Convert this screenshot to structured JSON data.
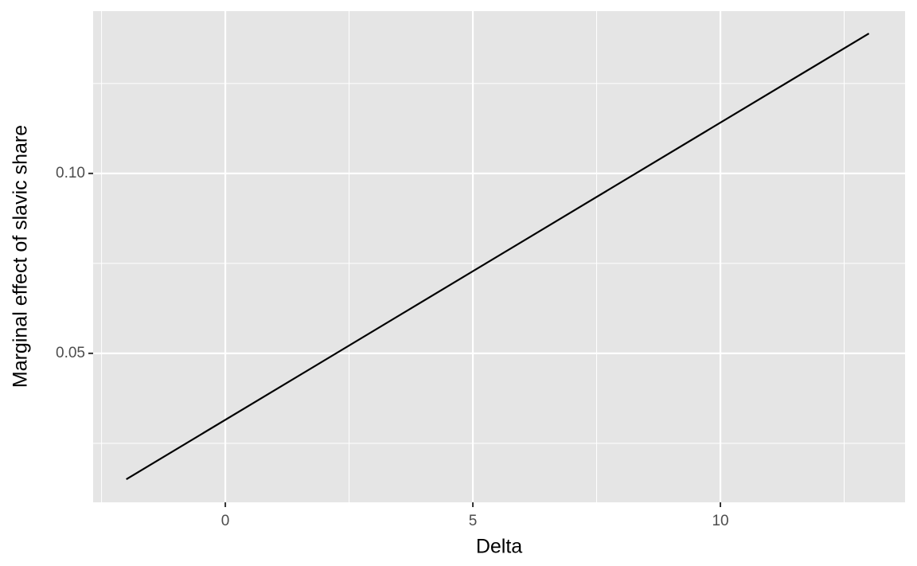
{
  "chart_data": {
    "type": "line",
    "x_label": "Delta",
    "y_label": "Marginal effect of slavic share",
    "x": [
      -2,
      13
    ],
    "values": [
      0.015,
      0.1389
    ],
    "color": "#000000",
    "xlim": [
      -2.67,
      13.73
    ],
    "ylim": [
      0.0086,
      0.1451
    ],
    "xticks": [
      0,
      5,
      10
    ],
    "yticks": [
      {
        "value": 0.05,
        "label": "0.05"
      },
      {
        "value": 0.1,
        "label": "0.10"
      }
    ],
    "xminor": [
      -2.5,
      2.5,
      7.5,
      12.5
    ],
    "yminor": [
      0.025,
      0.075,
      0.125
    ],
    "grid": true
  }
}
